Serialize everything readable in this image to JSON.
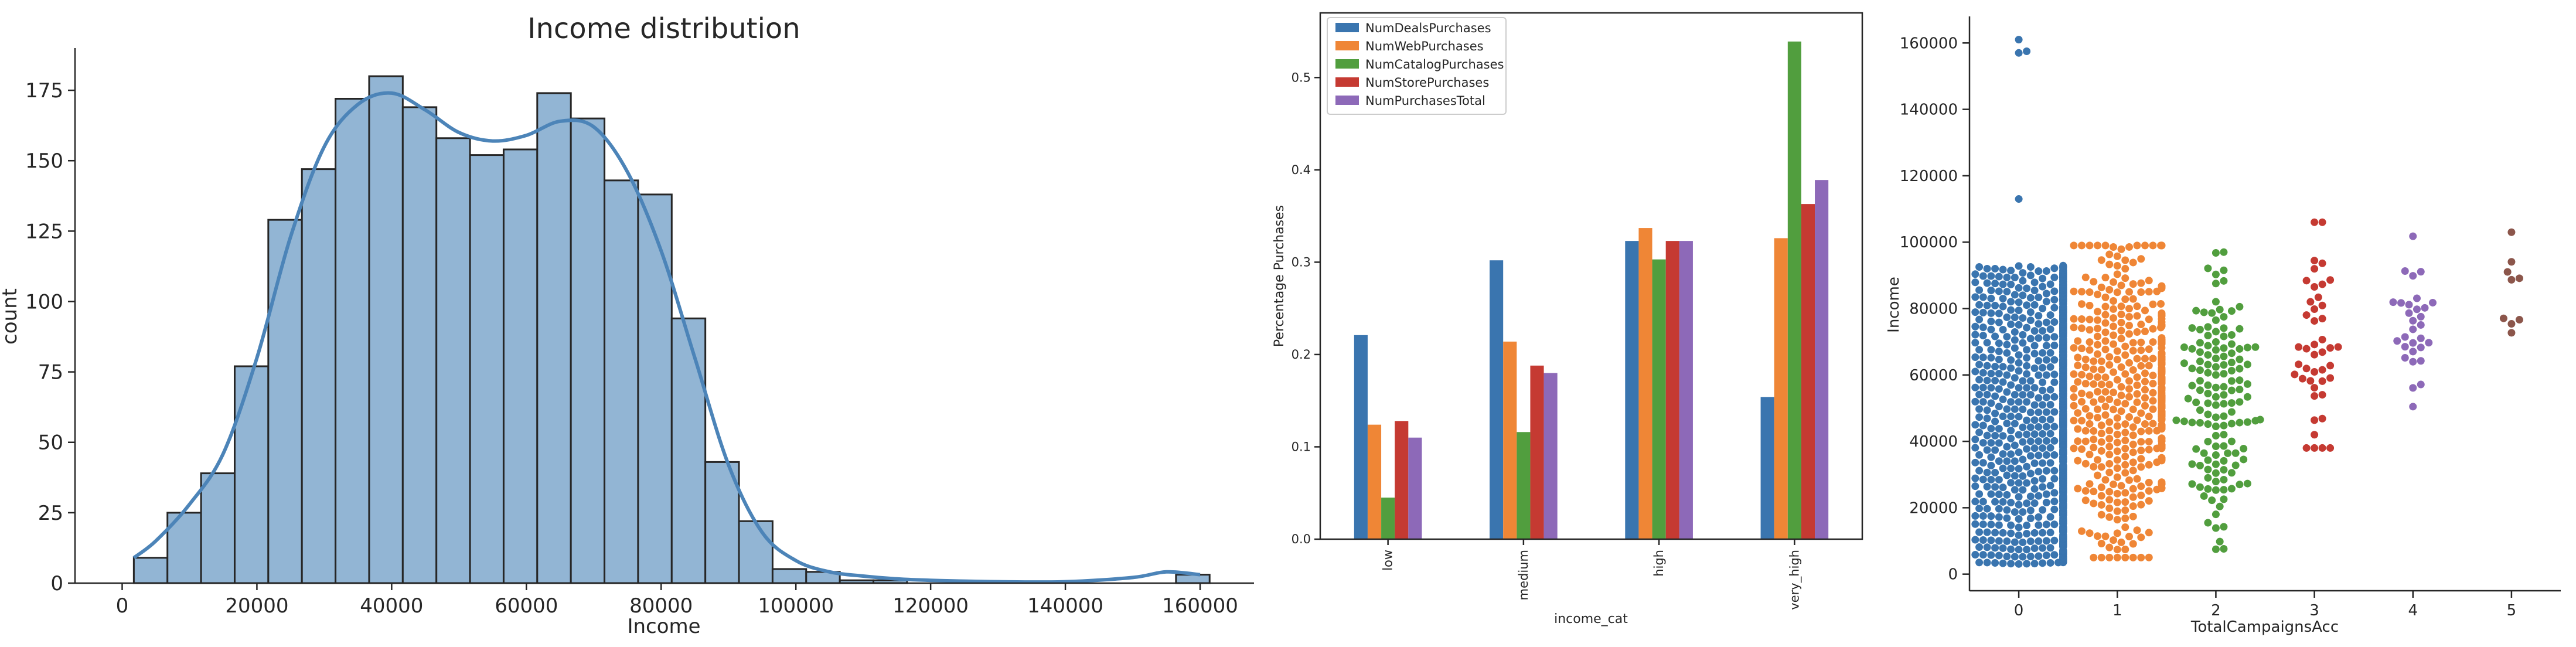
{
  "chart_data": [
    {
      "type": "bar",
      "subtype": "histogram",
      "title": "Income distribution",
      "xlabel": "Income",
      "ylabel": "count",
      "xlim": [
        -7000,
        168000
      ],
      "ylim": [
        0,
        190
      ],
      "xticks": [
        0,
        20000,
        40000,
        60000,
        80000,
        100000,
        120000,
        140000,
        160000
      ],
      "xtick_labels": [
        "0",
        "20000",
        "40000",
        "60000",
        "80000",
        "100000",
        "120000",
        "140000",
        "160000"
      ],
      "yticks": [
        0,
        25,
        50,
        75,
        100,
        125,
        150,
        175
      ],
      "bin_start": 1730,
      "bin_width": 4990,
      "counts": [
        9,
        25,
        39,
        77,
        129,
        147,
        172,
        180,
        169,
        158,
        152,
        154,
        174,
        165,
        143,
        138,
        94,
        43,
        22,
        5,
        4,
        1,
        1,
        0,
        0,
        0,
        0,
        0,
        0,
        0,
        0,
        3
      ],
      "kde": {
        "x": [
          1730,
          5000,
          10000,
          15000,
          20000,
          25000,
          30000,
          35000,
          40000,
          45000,
          50000,
          55000,
          60000,
          65000,
          70000,
          75000,
          80000,
          85000,
          90000,
          95000,
          100000,
          105000,
          110000,
          115000,
          120000,
          130000,
          140000,
          150000,
          155000,
          160000
        ],
        "y": [
          9,
          15,
          28,
          46,
          80,
          123,
          155,
          170,
          174,
          168,
          160,
          157,
          159,
          164,
          162,
          146,
          118,
          80,
          42,
          18,
          8,
          4,
          2.5,
          1.5,
          1,
          0.5,
          0.5,
          2,
          4,
          3
        ]
      },
      "bar_color": "#92b5d4",
      "kde_color": "#4c84b8"
    },
    {
      "type": "bar",
      "categories": [
        "low",
        "medium",
        "high",
        "very_high"
      ],
      "xlabel": "income_cat",
      "ylabel": "Percentage Purchases",
      "ylim": [
        0,
        0.57
      ],
      "yticks": [
        0.0,
        0.1,
        0.2,
        0.3,
        0.4,
        0.5
      ],
      "ytick_labels": [
        "0.0",
        "0.1",
        "0.2",
        "0.3",
        "0.4",
        "0.5"
      ],
      "legend_position": "top-left",
      "series": [
        {
          "name": "NumDealsPurchases",
          "color": "#3a75af",
          "values": [
            0.221,
            0.302,
            0.323,
            0.154
          ]
        },
        {
          "name": "NumWebPurchases",
          "color": "#ef8636",
          "values": [
            0.124,
            0.214,
            0.337,
            0.326
          ]
        },
        {
          "name": "NumCatalogPurchases",
          "color": "#519e3e",
          "values": [
            0.045,
            0.116,
            0.303,
            0.539
          ]
        },
        {
          "name": "NumStorePurchases",
          "color": "#c53a32",
          "values": [
            0.128,
            0.188,
            0.323,
            0.363
          ]
        },
        {
          "name": "NumPurchasesTotal",
          "color": "#8d69b8",
          "values": [
            0.11,
            0.18,
            0.323,
            0.389
          ]
        }
      ]
    },
    {
      "type": "scatter",
      "subtype": "swarm",
      "xlabel": "TotalCampaignsAcc",
      "ylabel": "Income",
      "categories": [
        "0",
        "1",
        "2",
        "3",
        "4",
        "5"
      ],
      "ylim": [
        -5000,
        168000
      ],
      "yticks": [
        0,
        20000,
        40000,
        60000,
        80000,
        100000,
        120000,
        140000,
        160000
      ],
      "ytick_labels": [
        "0",
        "20000",
        "40000",
        "60000",
        "80000",
        "100000",
        "120000",
        "140000",
        "160000"
      ],
      "groups": [
        {
          "category": "0",
          "color": "#3a75af",
          "count": 1523,
          "range": [
            3000,
            93000
          ],
          "outliers": [
            113000,
            157000,
            157500,
            161000
          ]
        },
        {
          "category": "1",
          "color": "#ef8636",
          "count": 490,
          "range": [
            5000,
            99000
          ],
          "outliers": []
        },
        {
          "category": "2",
          "color": "#519e3e",
          "count": 140,
          "range": [
            7500,
            97000
          ],
          "outliers": []
        },
        {
          "category": "3",
          "color": "#c53a32",
          "count": 44,
          "range": [
            38000,
            106000
          ],
          "outliers": []
        },
        {
          "category": "4",
          "color": "#8d69b8",
          "count": 30,
          "range": [
            48000,
            102000
          ],
          "outliers": []
        },
        {
          "category": "5",
          "color": "#8c564b",
          "count": 9,
          "range": [
            65000,
            103000
          ],
          "outliers": []
        }
      ]
    }
  ]
}
